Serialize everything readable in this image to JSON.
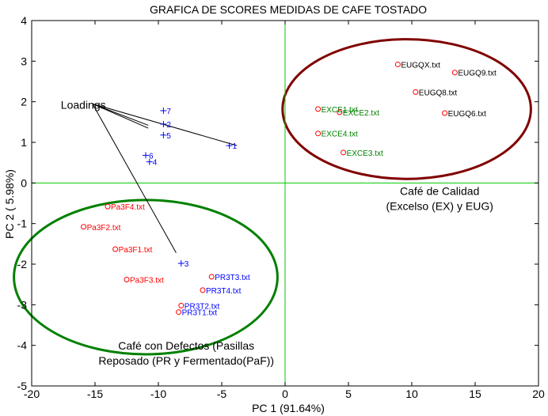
{
  "chart_data": {
    "type": "scatter",
    "title": "GRAFICA DE SCORES  MEDIDAS DE CAFE TOSTADO",
    "xlabel": "PC 1 (91.64%)",
    "ylabel": "PC 2 ( 5.98%)",
    "xlim": [
      -20,
      20
    ],
    "ylim": [
      -5,
      4
    ],
    "xticks": [
      -20,
      -15,
      -10,
      -5,
      0,
      5,
      10,
      15,
      20
    ],
    "yticks": [
      -5,
      -4,
      -3,
      -2,
      -1,
      0,
      1,
      2,
      3,
      4
    ],
    "colors": {
      "score_marker": "#ff0000",
      "eug_text": "#000000",
      "exce_text": "#008000",
      "pa_text": "#ff0000",
      "pr_text": "#0000ff",
      "loading": "#0000ff",
      "origin_lines": "#00cc00",
      "quality_ellipse": "#800000",
      "defect_ellipse": "#008000"
    },
    "scores": [
      {
        "label": "EUGQX.txt",
        "x": 8.9,
        "y": 2.92,
        "group": "eug"
      },
      {
        "label": "EUGQ9.txt",
        "x": 13.4,
        "y": 2.72,
        "group": "eug"
      },
      {
        "label": "EUGQ8.txt",
        "x": 10.3,
        "y": 2.24,
        "group": "eug"
      },
      {
        "label": "EUGQ6.txt",
        "x": 12.6,
        "y": 1.72,
        "group": "eug"
      },
      {
        "label": "EXCE1.txt",
        "x": 2.6,
        "y": 1.82,
        "group": "exce"
      },
      {
        "label": "EXCE2.txt",
        "x": 4.3,
        "y": 1.74,
        "group": "exce"
      },
      {
        "label": "EXCE4.txt",
        "x": 2.6,
        "y": 1.22,
        "group": "exce"
      },
      {
        "label": "EXCE3.txt",
        "x": 4.6,
        "y": 0.75,
        "group": "exce"
      },
      {
        "label": "Pa3F4.txt",
        "x": -14.0,
        "y": -0.58,
        "group": "pa"
      },
      {
        "label": "Pa3F2.txt",
        "x": -15.9,
        "y": -1.08,
        "group": "pa"
      },
      {
        "label": "Pa3F1.txt",
        "x": -13.4,
        "y": -1.63,
        "group": "pa"
      },
      {
        "label": "Pa3F3.txt",
        "x": -12.5,
        "y": -2.38,
        "group": "pa"
      },
      {
        "label": "PR3T3.txt",
        "x": -5.8,
        "y": -2.31,
        "group": "pr"
      },
      {
        "label": "PR3T4.txt",
        "x": -6.5,
        "y": -2.64,
        "group": "pr"
      },
      {
        "label": "PR3T2.txt",
        "x": -8.2,
        "y": -3.02,
        "group": "pr"
      },
      {
        "label": "PR3T1.txt",
        "x": -8.4,
        "y": -3.18,
        "group": "pr"
      }
    ],
    "loadings": [
      {
        "label": "1",
        "x": -4.4,
        "y": 0.92
      },
      {
        "label": "2",
        "x": -9.6,
        "y": 1.45
      },
      {
        "label": "3",
        "x": -8.2,
        "y": -1.98
      },
      {
        "label": "4",
        "x": -10.7,
        "y": 0.52
      },
      {
        "label": "5",
        "x": -9.6,
        "y": 1.18
      },
      {
        "label": "6",
        "x": -11.0,
        "y": 0.68
      },
      {
        "label": "7",
        "x": -9.6,
        "y": 1.78
      }
    ],
    "loadings_label": {
      "text": "Loadings",
      "x": -17.7,
      "y": 1.93
    },
    "loadings_pointers": [
      {
        "x": -3.8,
        "y": 0.92
      },
      {
        "x": -10.8,
        "y": 1.42
      },
      {
        "x": -10.8,
        "y": 1.35
      },
      {
        "x": -8.6,
        "y": -1.72
      }
    ],
    "ellipses": [
      {
        "name": "quality",
        "cx": 9.6,
        "cy": 1.82,
        "rx": 9.8,
        "ry": 1.72
      },
      {
        "name": "defect",
        "cx": -11.0,
        "cy": -2.32,
        "rx": 10.4,
        "ry": 1.9
      }
    ],
    "annotations": [
      {
        "name": "quality-annotation",
        "lines": [
          "Café de Calidad",
          "(Excelso (EX) y EUG)"
        ],
        "x": 12.2,
        "y": -0.3
      },
      {
        "name": "defect-annotation",
        "lines": [
          "Café con Defectos (Pasillas",
          "Reposado (PR y Fermentado(PaF))"
        ],
        "x": -7.8,
        "y": -4.1
      }
    ]
  }
}
